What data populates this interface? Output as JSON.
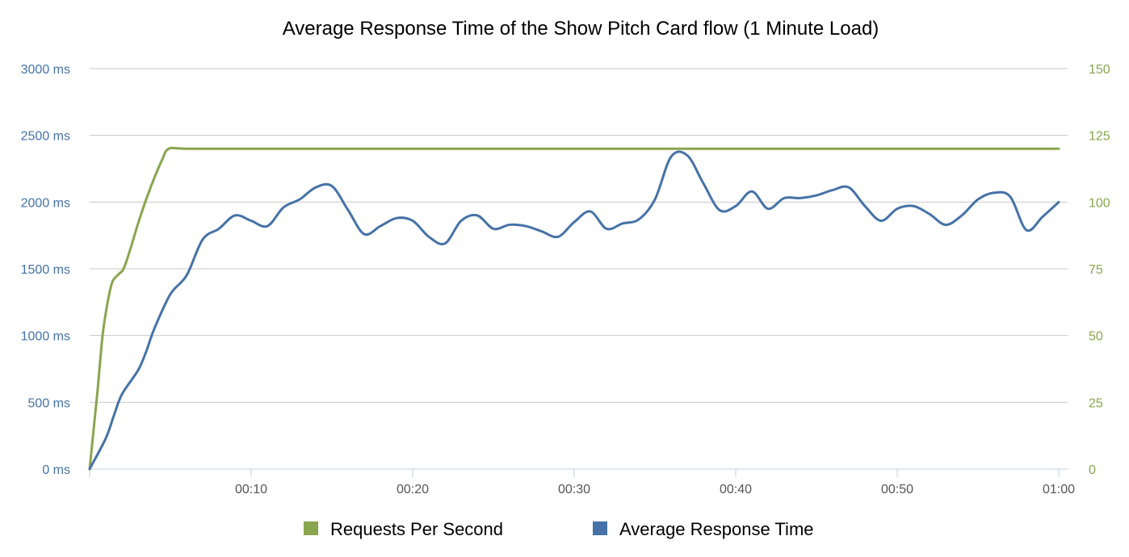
{
  "chart_data": {
    "type": "line",
    "title": "Average Response Time of the Show Pitch Card flow (1 Minute Load)",
    "xlabel": "",
    "ylabel": "",
    "xlim": [
      0,
      60
    ],
    "ylim_left": [
      0,
      3000
    ],
    "ylim_right": [
      0,
      150
    ],
    "y_ticks_left": [
      "0 ms",
      "500 ms",
      "1000 ms",
      "1500 ms",
      "2000 ms",
      "2500 ms",
      "3000 ms"
    ],
    "y_ticks_right": [
      "0",
      "25",
      "50",
      "75",
      "100",
      "125",
      "150"
    ],
    "x_ticks": [
      "00:10",
      "00:20",
      "00:30",
      "00:40",
      "00:50",
      "01:00"
    ],
    "grid": true,
    "legend_position": "bottom",
    "series": [
      {
        "name": "Requests Per Second",
        "axis": "right",
        "color": "#89A54E",
        "points": [
          [
            0,
            0
          ],
          [
            0.2,
            12
          ],
          [
            0.5,
            30
          ],
          [
            0.8,
            50
          ],
          [
            1.1,
            62
          ],
          [
            1.4,
            70
          ],
          [
            1.8,
            73
          ],
          [
            2.1,
            75
          ],
          [
            2.5,
            82
          ],
          [
            3.0,
            92
          ],
          [
            3.5,
            101
          ],
          [
            4.0,
            109
          ],
          [
            4.5,
            116
          ],
          [
            4.9,
            120
          ],
          [
            6,
            120
          ],
          [
            10,
            120
          ],
          [
            20,
            120
          ],
          [
            30,
            120
          ],
          [
            40,
            120
          ],
          [
            50,
            120
          ],
          [
            60,
            120
          ]
        ]
      },
      {
        "name": "Average Response Time",
        "axis": "left",
        "color": "#4572A7",
        "points": [
          [
            0,
            0
          ],
          [
            1,
            230
          ],
          [
            1.5,
            400
          ],
          [
            2,
            560
          ],
          [
            3,
            740
          ],
          [
            3.5,
            880
          ],
          [
            4,
            1050
          ],
          [
            5,
            1310
          ],
          [
            6,
            1450
          ],
          [
            7,
            1720
          ],
          [
            8,
            1800
          ],
          [
            9,
            1900
          ],
          [
            10,
            1860
          ],
          [
            11,
            1820
          ],
          [
            12,
            1960
          ],
          [
            13,
            2020
          ],
          [
            14,
            2110
          ],
          [
            15,
            2120
          ],
          [
            16,
            1940
          ],
          [
            17,
            1760
          ],
          [
            18,
            1820
          ],
          [
            19,
            1880
          ],
          [
            20,
            1860
          ],
          [
            21,
            1740
          ],
          [
            22,
            1690
          ],
          [
            23,
            1860
          ],
          [
            24,
            1900
          ],
          [
            25,
            1800
          ],
          [
            26,
            1830
          ],
          [
            27,
            1820
          ],
          [
            28,
            1780
          ],
          [
            29,
            1740
          ],
          [
            30,
            1850
          ],
          [
            31,
            1930
          ],
          [
            32,
            1800
          ],
          [
            33,
            1840
          ],
          [
            34,
            1870
          ],
          [
            35,
            2020
          ],
          [
            36,
            2340
          ],
          [
            37,
            2350
          ],
          [
            38,
            2140
          ],
          [
            39,
            1940
          ],
          [
            40,
            1970
          ],
          [
            41,
            2080
          ],
          [
            42,
            1950
          ],
          [
            43,
            2030
          ],
          [
            44,
            2030
          ],
          [
            45,
            2050
          ],
          [
            46,
            2090
          ],
          [
            47,
            2110
          ],
          [
            48,
            1970
          ],
          [
            49,
            1860
          ],
          [
            50,
            1950
          ],
          [
            51,
            1970
          ],
          [
            52,
            1910
          ],
          [
            53,
            1830
          ],
          [
            54,
            1900
          ],
          [
            55,
            2020
          ],
          [
            56,
            2070
          ],
          [
            57,
            2040
          ],
          [
            58,
            1790
          ],
          [
            59,
            1890
          ],
          [
            60,
            2000
          ]
        ]
      }
    ]
  }
}
